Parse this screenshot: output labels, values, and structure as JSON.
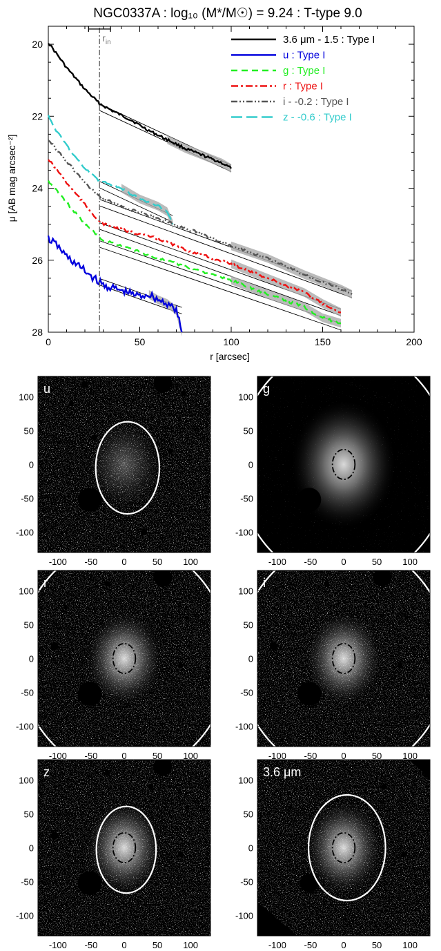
{
  "title": "NGC0337A : log₁₀ (M*/M☉) = 9.24 : T-type 9.0",
  "colors": {
    "black": "#000000",
    "blue": "#0000dd",
    "green": "#22ee22",
    "red": "#ee1111",
    "gray": "#555555",
    "cyan": "#33cccc",
    "band": "#aaaaaa"
  },
  "chart_data": [
    {
      "type": "line",
      "title": "NGC0337A : log₁₀ (M*/M☉) = 9.24 : T-type 9.0",
      "xlabel": "r [arcsec]",
      "ylabel": "μ [AB mag arcsec⁻²]",
      "xlim": [
        0,
        200
      ],
      "ylim": [
        28,
        19.5
      ],
      "y_inverted": true,
      "xticks": [
        0,
        50,
        100,
        150,
        200
      ],
      "yticks": [
        20,
        22,
        24,
        26,
        28
      ],
      "r_in_label": "r_in",
      "r_in": 28,
      "r_in_range": [
        22,
        34
      ],
      "legend_position": "top-right",
      "series": [
        {
          "name": "3.6 μm - 1.5 : Type I",
          "style": "solid",
          "color": "#000000",
          "x": [
            0,
            5,
            10,
            15,
            20,
            25,
            28,
            35,
            45,
            55,
            65,
            75,
            85,
            95,
            100
          ],
          "y": [
            19.95,
            20.3,
            20.65,
            20.95,
            21.25,
            21.5,
            21.65,
            21.85,
            22.1,
            22.4,
            22.65,
            22.9,
            23.1,
            23.3,
            23.45
          ],
          "fit": {
            "x": [
              28,
              100
            ],
            "y": [
              21.75,
              23.45
            ]
          }
        },
        {
          "name": "u : Type I",
          "style": "solid",
          "color": "#0000dd",
          "x": [
            0,
            5,
            10,
            15,
            20,
            25,
            30,
            40,
            50,
            55,
            60,
            65,
            70,
            73
          ],
          "y": [
            25.4,
            25.6,
            25.9,
            26.1,
            26.3,
            26.5,
            26.7,
            26.85,
            27.0,
            26.95,
            27.1,
            27.2,
            27.4,
            28.0
          ],
          "fit": {
            "x": [
              28,
              73
            ],
            "y": [
              26.6,
              27.4
            ]
          }
        },
        {
          "name": "g : Type I",
          "style": "dash",
          "color": "#22ee22",
          "x": [
            0,
            5,
            10,
            15,
            20,
            25,
            28,
            40,
            60,
            80,
            100,
            120,
            140,
            150,
            160
          ],
          "y": [
            23.8,
            24.1,
            24.4,
            24.7,
            25.0,
            25.2,
            25.4,
            25.6,
            25.95,
            26.25,
            26.55,
            26.95,
            27.3,
            27.6,
            27.75
          ],
          "fit": {
            "x": [
              28,
              160
            ],
            "y": [
              25.55,
              27.85
            ]
          }
        },
        {
          "name": "r : Type I",
          "style": "dashdot",
          "color": "#ee1111",
          "x": [
            0,
            5,
            10,
            15,
            20,
            25,
            28,
            40,
            60,
            80,
            100,
            120,
            140,
            150,
            160
          ],
          "y": [
            23.2,
            23.5,
            23.85,
            24.15,
            24.45,
            24.75,
            24.95,
            25.15,
            25.4,
            25.8,
            26.1,
            26.5,
            26.9,
            27.2,
            27.45
          ],
          "fit": {
            "x": [
              28,
              160
            ],
            "y": [
              25.05,
              27.45
            ]
          }
        },
        {
          "name": "i - -0.2 : Type I",
          "style": "dashdotdot",
          "color": "#555555",
          "x": [
            0,
            5,
            10,
            15,
            20,
            25,
            28,
            40,
            60,
            80,
            100,
            120,
            140,
            160,
            166
          ],
          "y": [
            22.65,
            22.95,
            23.25,
            23.55,
            23.85,
            24.1,
            24.25,
            24.5,
            24.85,
            25.2,
            25.6,
            25.95,
            26.4,
            26.8,
            26.95
          ],
          "fit": {
            "x": [
              28,
              166
            ],
            "y": [
              24.4,
              26.95
            ]
          }
        },
        {
          "name": "z - -0.6 : Type I",
          "style": "longdash",
          "color": "#33cccc",
          "x": [
            0,
            5,
            10,
            15,
            20,
            25,
            28,
            40,
            50,
            60,
            65,
            68
          ],
          "y": [
            22.0,
            22.45,
            22.8,
            23.15,
            23.45,
            23.65,
            23.8,
            24.0,
            24.3,
            24.5,
            24.65,
            25.0
          ],
          "fit": {
            "x": [
              28,
              68
            ],
            "y": [
              23.9,
              24.85
            ]
          }
        }
      ]
    },
    {
      "type": "image",
      "band": "u",
      "xticks": [
        -100,
        -50,
        0,
        50,
        100
      ],
      "yticks": [
        100,
        50,
        0,
        -50,
        -100
      ],
      "outer_ellipse": {
        "a": 48,
        "b": 68,
        "cx": 5,
        "cy": -5
      },
      "inner_ellipse": null,
      "background": "speckle"
    },
    {
      "type": "image",
      "band": "g",
      "xticks": [
        -100,
        -50,
        0,
        50,
        100
      ],
      "yticks": [
        100,
        50,
        0,
        -50,
        -100
      ],
      "outer_ellipse": {
        "a": 160,
        "b": 175,
        "cx": 0,
        "cy": 0
      },
      "inner_ellipse": {
        "a": 17,
        "b": 22,
        "cx": 0,
        "cy": 0
      },
      "background": "dark"
    },
    {
      "type": "image",
      "band": "r",
      "xticks": [
        -100,
        -50,
        0,
        50,
        100
      ],
      "yticks": [
        100,
        50,
        0,
        -50,
        -100
      ],
      "outer_ellipse": {
        "a": 158,
        "b": 172,
        "cx": 0,
        "cy": 0
      },
      "inner_ellipse": {
        "a": 17,
        "b": 22,
        "cx": 0,
        "cy": 0
      },
      "background": "speckle"
    },
    {
      "type": "image",
      "band": "i",
      "xticks": [
        -100,
        -50,
        0,
        50,
        100
      ],
      "yticks": [
        100,
        50,
        0,
        -50,
        -100
      ],
      "outer_ellipse": {
        "a": 158,
        "b": 172,
        "cx": 0,
        "cy": 0
      },
      "inner_ellipse": {
        "a": 17,
        "b": 22,
        "cx": 0,
        "cy": 0
      },
      "background": "speckle"
    },
    {
      "type": "image",
      "band": "z",
      "xticks": [
        -100,
        -50,
        0,
        50,
        100
      ],
      "yticks": [
        100,
        50,
        0,
        -50,
        -100
      ],
      "outer_ellipse": {
        "a": 45,
        "b": 64,
        "cx": 3,
        "cy": -3
      },
      "inner_ellipse": {
        "a": 17,
        "b": 22,
        "cx": 0,
        "cy": 0
      },
      "background": "speckle"
    },
    {
      "type": "image",
      "band": "3.6 μm",
      "xticks": [
        -100,
        -50,
        0,
        50,
        100
      ],
      "yticks": [
        100,
        50,
        0,
        -50,
        -100
      ],
      "outer_ellipse": {
        "a": 58,
        "b": 78,
        "cx": 5,
        "cy": 0
      },
      "inner_ellipse": {
        "a": 17,
        "b": 22,
        "cx": 0,
        "cy": 0
      },
      "background": "speckle"
    }
  ]
}
